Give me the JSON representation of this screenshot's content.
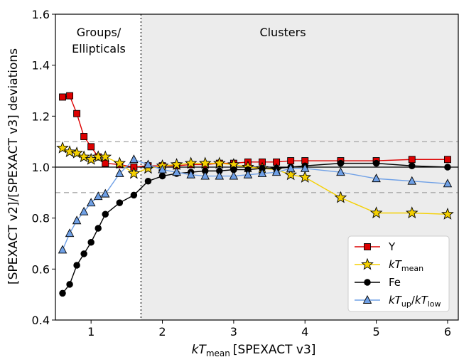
{
  "chart_data": {
    "type": "line",
    "xlabel_main": "kT",
    "xlabel_sub": "mean",
    "xlabel_rest": "[SPEXACT v3]",
    "ylabel": "[SPEXACT v2]/[SPEXACT v3] deviations",
    "xlim": [
      0.5,
      6.15
    ],
    "ylim": [
      0.4,
      1.6
    ],
    "xticks": [
      1,
      2,
      3,
      4,
      5,
      6
    ],
    "yticks": [
      0.4,
      0.6,
      0.8,
      1.0,
      1.2,
      1.4,
      1.6
    ],
    "ytick_labels": [
      "0.4",
      "0.6",
      "0.8",
      "1.0",
      "1.2",
      "1.4",
      "1.6"
    ],
    "divider_x": 1.7,
    "shaded_from_x": 1.7,
    "region_left_label_line1": "Groups/",
    "region_left_label_line2": "Ellipticals",
    "region_right_label": "Clusters",
    "hlines_dashed": [
      0.9,
      1.1
    ],
    "hline_solid": 1.0,
    "legend_position": "lower right",
    "legend": {
      "y": {
        "main": "Y"
      },
      "ktmean": {
        "main": "kT",
        "sub": "mean"
      },
      "fe": {
        "main": "Fe"
      },
      "ktratio": {
        "main1": "kT",
        "sub1": "up",
        "slash": "/",
        "main2": "kT",
        "sub2": "low"
      }
    },
    "series": [
      {
        "key": "Y",
        "color": "#dd0000",
        "marker": "square",
        "x": [
          0.6,
          0.7,
          0.8,
          0.9,
          1.0,
          1.1,
          1.2,
          1.4,
          1.6,
          1.8,
          2.0,
          2.2,
          2.4,
          2.6,
          2.8,
          3.0,
          3.2,
          3.4,
          3.6,
          3.8,
          4.0,
          4.5,
          5.0,
          5.5,
          6.0
        ],
        "y": [
          1.275,
          1.28,
          1.21,
          1.12,
          1.08,
          1.04,
          1.015,
          1.01,
          1.0,
          1.005,
          1.005,
          1.005,
          1.01,
          1.01,
          1.015,
          1.015,
          1.02,
          1.02,
          1.02,
          1.025,
          1.025,
          1.025,
          1.025,
          1.03,
          1.03
        ]
      },
      {
        "key": "kTmean",
        "color": "#f5d000",
        "marker": "star",
        "x": [
          0.6,
          0.7,
          0.8,
          0.9,
          1.0,
          1.1,
          1.2,
          1.4,
          1.6,
          1.8,
          2.0,
          2.2,
          2.4,
          2.6,
          2.8,
          3.0,
          3.2,
          3.4,
          3.6,
          3.8,
          4.0,
          4.5,
          5.0,
          5.5,
          6.0
        ],
        "y": [
          1.075,
          1.06,
          1.055,
          1.04,
          1.03,
          1.04,
          1.04,
          1.015,
          0.975,
          0.995,
          1.005,
          1.01,
          1.015,
          1.015,
          1.015,
          1.01,
          1.0,
          0.995,
          0.99,
          0.97,
          0.96,
          0.88,
          0.82,
          0.82,
          0.815
        ]
      },
      {
        "key": "Fe",
        "color": "#000000",
        "marker": "circle",
        "x": [
          0.6,
          0.7,
          0.8,
          0.9,
          1.0,
          1.1,
          1.2,
          1.4,
          1.6,
          1.8,
          2.0,
          2.2,
          2.4,
          2.6,
          2.8,
          3.0,
          3.2,
          3.4,
          3.6,
          3.8,
          4.0,
          4.5,
          5.0,
          5.5,
          6.0
        ],
        "y": [
          0.505,
          0.54,
          0.615,
          0.66,
          0.705,
          0.76,
          0.815,
          0.86,
          0.89,
          0.945,
          0.965,
          0.975,
          0.98,
          0.985,
          0.985,
          0.99,
          0.99,
          0.995,
          0.995,
          1.0,
          1.005,
          1.015,
          1.015,
          1.005,
          1.0
        ]
      },
      {
        "key": "kTratio",
        "color": "#6fa0e6",
        "marker": "triangle",
        "x": [
          0.6,
          0.7,
          0.8,
          0.9,
          1.0,
          1.1,
          1.2,
          1.4,
          1.6,
          1.8,
          2.0,
          2.2,
          2.4,
          2.6,
          2.8,
          3.0,
          3.2,
          3.4,
          3.6,
          3.8,
          4.0,
          4.5,
          5.0,
          5.5,
          6.0
        ],
        "y": [
          0.675,
          0.74,
          0.79,
          0.825,
          0.86,
          0.885,
          0.895,
          0.975,
          1.03,
          1.01,
          0.99,
          0.98,
          0.97,
          0.965,
          0.965,
          0.965,
          0.97,
          0.975,
          0.98,
          0.995,
          0.995,
          0.98,
          0.955,
          0.945,
          0.935
        ]
      }
    ]
  }
}
